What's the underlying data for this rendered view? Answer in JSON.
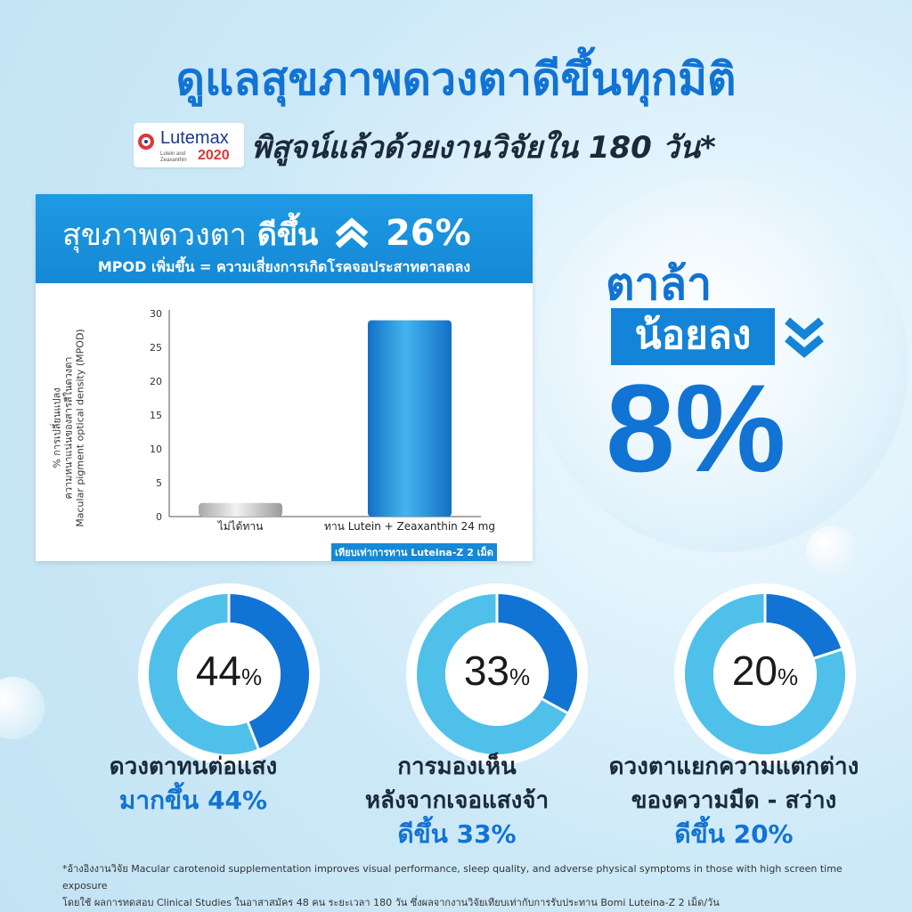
{
  "title": "ดูแลสุขภาพดวงตาดีขึ้นทุกมิติ",
  "logo": {
    "name": "Lutemax",
    "sub": "Lutein and Zeaxanthin",
    "year": "2020"
  },
  "subtitle": "พิสูจน์แล้วด้วยงานวิจัยใน 180 วัน*",
  "chart_header": {
    "prefix": "สุขภาพดวงตา",
    "emph": "ดีขึ้น",
    "value": "26%",
    "line2": "MPOD เพิ่มขึ้น = ความเสี่ยงการเกิดโรคจอประสาทตาลดลง"
  },
  "chart_data": {
    "type": "bar",
    "categories": [
      "ไม่ได้ทาน",
      "ทาน Lutein + Zeaxanthin 24 mg"
    ],
    "values": [
      2,
      29
    ],
    "ylabel_lines": [
      "% การเปลี่ยนแปลง",
      "ความหนาแน่นของสารสีในดวงตา",
      "Macular pigment optical density (MPOD)"
    ],
    "yticks": [
      0,
      5,
      10,
      15,
      20,
      25,
      30
    ],
    "ylim": [
      0,
      30
    ],
    "annotation": "เทียบเท่าการทาน Luteina-Z 2 เม็ด",
    "colors": [
      "#c9c9c9",
      "#1b8fdc"
    ]
  },
  "right_callout": {
    "line1": "ตาล้า",
    "line2": "น้อยลง",
    "value": "8%"
  },
  "donuts": [
    {
      "number": "44",
      "unit": "%",
      "fraction": 0.44,
      "line1": "ดวงตาทนต่อแสง",
      "line2": "",
      "line3": "มากขึ้น 44%"
    },
    {
      "number": "33",
      "unit": "%",
      "fraction": 0.33,
      "line1": "การมองเห็น",
      "line2": "หลังจากเจอแสงจ้า",
      "line3": "ดีขึ้น 33%"
    },
    {
      "number": "20",
      "unit": "%",
      "fraction": 0.2,
      "line1": "ดวงตาแยกความแตกต่าง",
      "line2": "ของความมืด - สว่าง",
      "line3": "ดีขึ้น 20%"
    }
  ],
  "colors": {
    "accent": "#1173d4",
    "donut_dark": "#1173d4",
    "donut_light": "#4fc0ea"
  },
  "footnote": {
    "line1": "*อ้างอิงงานวิจัย Macular carotenoid supplementation improves visual performance, sleep quality, and adverse physical symptoms in those with high screen time exposure",
    "line2": "โดยใช้ ผลการทดสอบ Clinical Studies ในอาสาสมัคร 48 คน ระยะเวลา 180 วัน ซึ่งผลจากงานวิจัยเทียบเท่ากับการรับประทาน Bomi Luteina-Z 2 เม็ด/วัน"
  }
}
